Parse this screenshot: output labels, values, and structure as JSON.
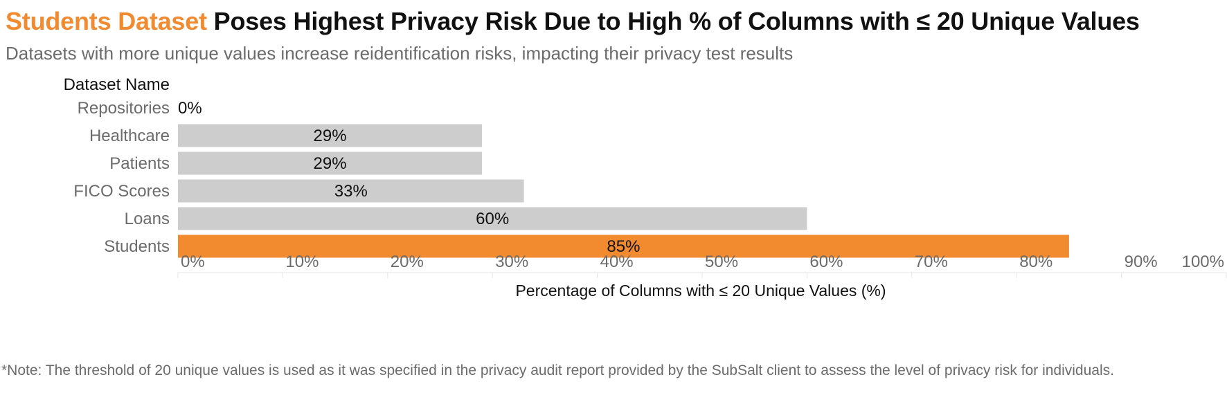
{
  "title": {
    "highlight": "Students Dataset",
    "rest": " Poses Highest Privacy Risk Due to High % of Columns with ≤ 20 Unique Values"
  },
  "subtitle": "Datasets with more unique values increase reidentification risks, impacting their privacy test results",
  "note": "*Note: The threshold of 20 unique values is used as it was specified in the privacy audit report provided by the SubSalt client to assess the level of privacy risk for individuals.",
  "colors": {
    "highlight": "#F28A30",
    "bar_default": "#CDCDCD",
    "label_text": "#6b6b6b",
    "title_text": "#111111"
  },
  "chart_data": {
    "type": "bar",
    "orientation": "horizontal",
    "category_header": "Dataset Name",
    "categories": [
      "Repositories",
      "Healthcare",
      "Patients",
      "FICO Scores",
      "Loans",
      "Students"
    ],
    "values": [
      0,
      29,
      29,
      33,
      60,
      85
    ],
    "value_labels": [
      "0%",
      "29%",
      "29%",
      "33%",
      "60%",
      "85%"
    ],
    "highlighted_category": "Students",
    "xlabel": "Percentage of Columns with ≤ 20 Unique Values (%)",
    "xlim": [
      0,
      100
    ],
    "xticks": [
      0,
      10,
      20,
      30,
      40,
      50,
      60,
      70,
      80,
      90,
      100
    ],
    "xtick_labels": [
      "0%",
      "10%",
      "20%",
      "30%",
      "40%",
      "50%",
      "60%",
      "70%",
      "80%",
      "90%",
      "100%"
    ],
    "grid": false,
    "legend": "none"
  }
}
